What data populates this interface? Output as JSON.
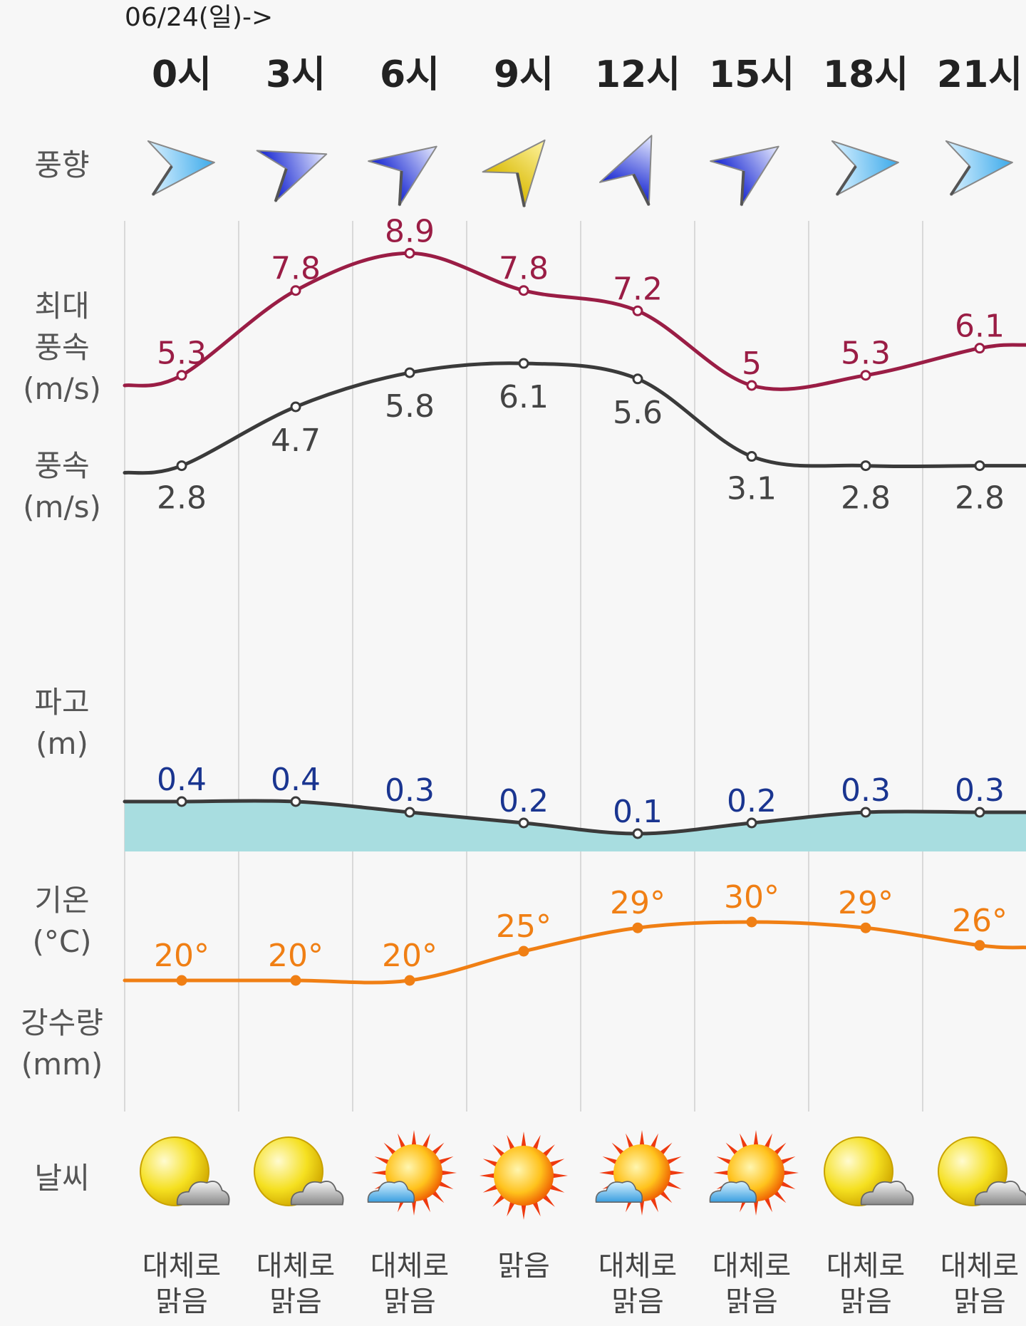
{
  "header": {
    "date": "06/24(일)->"
  },
  "hours": [
    "0시",
    "3시",
    "6시",
    "9시",
    "12시",
    "15시",
    "18시",
    "21시"
  ],
  "row_labels": {
    "wind_dir": [
      "풍향"
    ],
    "gust": [
      "최대",
      "풍속",
      "(m/s)"
    ],
    "wind": [
      "풍속",
      "(m/s)"
    ],
    "wave": [
      "파고",
      "(m)"
    ],
    "temp": [
      "기온",
      "(°C)"
    ],
    "rain": [
      "강수량",
      "(mm)"
    ],
    "weather": [
      "날씨"
    ]
  },
  "colors": {
    "gust": "#9a1d45",
    "wind": "#3a3a3a",
    "wave_line": "#3a3a3a",
    "wave_fill": "#a8dde0",
    "wave_label": "#1a3590",
    "temp": "#f07f14",
    "grid": "#d9d9d9",
    "arrow_light": "#4fb6ef",
    "arrow_blue": "#1f2ee6",
    "arrow_yellow": "#e7c800"
  },
  "chart_data": {
    "type": "line",
    "x": [
      "0시",
      "3시",
      "6시",
      "9시",
      "12시",
      "15시",
      "18시",
      "21시"
    ],
    "series": [
      {
        "name": "최대풍속 (m/s)",
        "values": [
          5.3,
          7.8,
          8.9,
          7.8,
          7.2,
          5,
          5.3,
          6.1
        ],
        "labels": [
          "5.3",
          "7.8",
          "8.9",
          "7.8",
          "7.2",
          "5",
          "5.3",
          "6.1"
        ]
      },
      {
        "name": "풍속 (m/s)",
        "values": [
          2.8,
          4.7,
          5.8,
          6.1,
          5.6,
          3.1,
          2.8,
          2.8
        ],
        "labels": [
          "2.8",
          "4.7",
          "5.8",
          "6.1",
          "5.6",
          "3.1",
          "2.8",
          "2.8"
        ]
      },
      {
        "name": "파고 (m)",
        "values": [
          0.4,
          0.4,
          0.3,
          0.2,
          0.1,
          0.2,
          0.3,
          0.3
        ],
        "labels": [
          "0.4",
          "0.4",
          "0.3",
          "0.2",
          "0.1",
          "0.2",
          "0.3",
          "0.3"
        ]
      },
      {
        "name": "기온 (°C)",
        "values": [
          20,
          20,
          20,
          25,
          29,
          30,
          29,
          26
        ],
        "labels": [
          "20°",
          "20°",
          "20°",
          "25°",
          "29°",
          "30°",
          "29°",
          "26°"
        ]
      }
    ],
    "wind_direction": {
      "arrows": [
        {
          "color": "light-blue",
          "direction_deg": 85
        },
        {
          "color": "blue",
          "direction_deg": 70
        },
        {
          "color": "blue",
          "direction_deg": 55
        },
        {
          "color": "yellow",
          "direction_deg": 40
        },
        {
          "color": "blue",
          "direction_deg": 25
        },
        {
          "color": "blue",
          "direction_deg": 55
        },
        {
          "color": "light-blue",
          "direction_deg": 85
        },
        {
          "color": "light-blue",
          "direction_deg": 85
        }
      ]
    }
  },
  "weather": [
    {
      "icon": "sun-cloud-icon",
      "label": [
        "대체로",
        "맑음"
      ]
    },
    {
      "icon": "sun-cloud-icon",
      "label": [
        "대체로",
        "맑음"
      ]
    },
    {
      "icon": "sun-rays-cloud-icon",
      "label": [
        "대체로",
        "맑음"
      ]
    },
    {
      "icon": "sun-rays-icon",
      "label": [
        "맑음"
      ]
    },
    {
      "icon": "sun-rays-cloud-icon",
      "label": [
        "대체로",
        "맑음"
      ]
    },
    {
      "icon": "sun-rays-cloud-icon",
      "label": [
        "대체로",
        "맑음"
      ]
    },
    {
      "icon": "sun-cloud-icon",
      "label": [
        "대체로",
        "맑음"
      ]
    },
    {
      "icon": "sun-cloud-icon",
      "label": [
        "대체로",
        "맑음"
      ]
    }
  ]
}
